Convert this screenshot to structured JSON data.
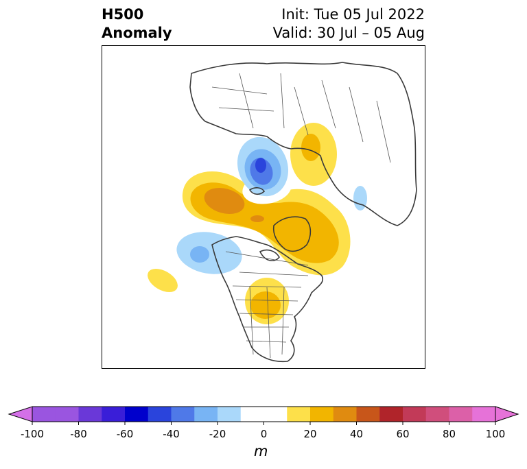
{
  "title": {
    "left_line1": "H500",
    "left_line2": "Anomaly",
    "right_line1": "Init: Tue 05 Jul 2022",
    "right_line2": "Valid: 30 Jul – 05 Aug"
  },
  "colorbar": {
    "unit": "m",
    "tick_labels": [
      "-100",
      "-80",
      "-60",
      "-40",
      "-20",
      "0",
      "20",
      "40",
      "60",
      "80",
      "100"
    ],
    "ticks": [
      -100,
      -80,
      -60,
      -40,
      -20,
      0,
      20,
      40,
      60,
      80,
      100
    ],
    "bins": [
      {
        "min": -100,
        "max": -90,
        "color": "#9a55e0"
      },
      {
        "min": -90,
        "max": -80,
        "color": "#9a55e0"
      },
      {
        "min": -80,
        "max": -70,
        "color": "#6a38d8"
      },
      {
        "min": -70,
        "max": -60,
        "color": "#3a1ed8"
      },
      {
        "min": -60,
        "max": -50,
        "color": "#0000cc"
      },
      {
        "min": -50,
        "max": -40,
        "color": "#2a44dc"
      },
      {
        "min": -40,
        "max": -30,
        "color": "#4f79e8"
      },
      {
        "min": -30,
        "max": -20,
        "color": "#78b4f4"
      },
      {
        "min": -20,
        "max": -10,
        "color": "#aad8fa"
      },
      {
        "min": -10,
        "max": 10,
        "color": "#ffffff"
      },
      {
        "min": 10,
        "max": 20,
        "color": "#fde04a"
      },
      {
        "min": 20,
        "max": 30,
        "color": "#f2b500"
      },
      {
        "min": 30,
        "max": 40,
        "color": "#e08b10"
      },
      {
        "min": 40,
        "max": 50,
        "color": "#c8561a"
      },
      {
        "min": 50,
        "max": 60,
        "color": "#b0242a"
      },
      {
        "min": 60,
        "max": 70,
        "color": "#c23a58"
      },
      {
        "min": 70,
        "max": 80,
        "color": "#d04e7c"
      },
      {
        "min": 80,
        "max": 90,
        "color": "#dc60a8"
      },
      {
        "min": 90,
        "max": 100,
        "color": "#e672d8"
      }
    ],
    "low_extend_color": "#d470e8",
    "high_extend_color": "#e672d8"
  },
  "map": {
    "projection": "north-polar-stereographic",
    "anomaly_features": [
      {
        "name": "greenland-arctic-ridge",
        "sign": "positive",
        "peak_level": 40
      },
      {
        "name": "canadian-archipelago-ridge",
        "sign": "positive",
        "peak_level": 30
      },
      {
        "name": "west-siberia-ridge",
        "sign": "positive",
        "peak_level": 20
      },
      {
        "name": "great-lakes-ridge",
        "sign": "positive",
        "peak_level": 20
      },
      {
        "name": "kara-sea-trough",
        "sign": "negative",
        "peak_level": -40
      },
      {
        "name": "gulf-of-alaska-trough",
        "sign": "negative",
        "peak_level": -30
      },
      {
        "name": "north-pacific-ridge",
        "sign": "positive",
        "peak_level": 10
      },
      {
        "name": "central-asia-trough",
        "sign": "negative",
        "peak_level": -10
      }
    ]
  }
}
